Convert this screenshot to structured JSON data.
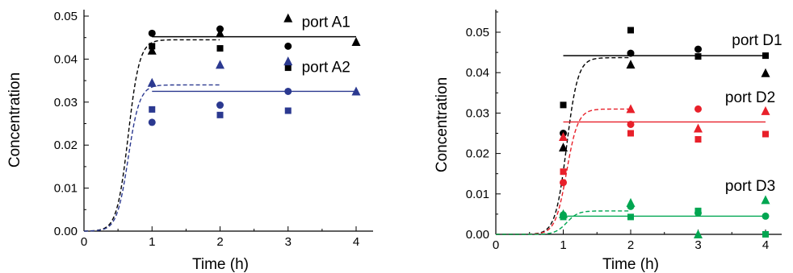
{
  "colors": {
    "black": "#000000",
    "blue": "#2B3990",
    "red": "#E8202A",
    "green": "#00A651"
  },
  "chart_data": [
    {
      "type": "scatter",
      "xlabel": "Time (h)",
      "ylabel": "Concentration",
      "xlim": [
        0,
        4.5
      ],
      "ylim": [
        0,
        0.05
      ],
      "xticks": [
        "0",
        "1",
        "2",
        "3",
        "4"
      ],
      "yticks": [
        "0.00",
        "0.01",
        "0.02",
        "0.03",
        "0.04",
        "0.05"
      ],
      "xtick_values": [
        0,
        1,
        2,
        3,
        4
      ],
      "ytick_values": [
        0,
        0.01,
        0.02,
        0.03,
        0.04,
        0.05
      ],
      "grid": false,
      "annotations": [
        {
          "text": "port A1",
          "x": 3.2,
          "y": 0.0475
        },
        {
          "text": "port A2",
          "x": 3.2,
          "y": 0.037
        }
      ],
      "series": [
        {
          "color": "#000000",
          "marker": "circle",
          "x": [
            1,
            2,
            3
          ],
          "y": [
            0.046,
            0.047,
            0.043
          ]
        },
        {
          "color": "#000000",
          "marker": "square",
          "x": [
            1,
            2,
            3
          ],
          "y": [
            0.043,
            0.0425,
            0.038
          ]
        },
        {
          "color": "#000000",
          "marker": "triangle",
          "x": [
            1,
            2,
            3,
            4
          ],
          "y": [
            0.042,
            0.046,
            0.0495,
            0.044
          ]
        },
        {
          "color": "#2B3990",
          "marker": "circle",
          "x": [
            1,
            2,
            3
          ],
          "y": [
            0.0253,
            0.0293,
            0.0325
          ]
        },
        {
          "color": "#2B3990",
          "marker": "square",
          "x": [
            1,
            2,
            3
          ],
          "y": [
            0.0283,
            0.027,
            0.028
          ]
        },
        {
          "color": "#2B3990",
          "marker": "triangle",
          "x": [
            1,
            2,
            3,
            4
          ],
          "y": [
            0.0345,
            0.0387,
            0.0395,
            0.0325
          ]
        }
      ],
      "fit_lines": [
        {
          "color": "#000000",
          "style": "solid",
          "x": [
            1,
            4
          ],
          "y": [
            0.0452,
            0.0452
          ]
        },
        {
          "color": "#2B3990",
          "style": "solid",
          "x": [
            1,
            4
          ],
          "y": [
            0.0325,
            0.0325
          ]
        }
      ],
      "model_curves": [
        {
          "color": "#000000",
          "style": "dashed",
          "x0": 0.3,
          "k": 12,
          "plateau": 0.0445,
          "xmax": 2
        },
        {
          "color": "#2B3990",
          "style": "dashed",
          "x0": 0.3,
          "k": 12,
          "plateau": 0.034,
          "xmax": 2
        }
      ]
    },
    {
      "type": "scatter",
      "xlabel": "Time (h)",
      "ylabel": "Concentration",
      "xlim": [
        0,
        4.5
      ],
      "ylim": [
        0,
        0.055
      ],
      "xticks": [
        "0",
        "1",
        "2",
        "3",
        "4"
      ],
      "yticks": [
        "0.00",
        "0.01",
        "0.02",
        "0.03",
        "0.04",
        "0.05"
      ],
      "xtick_values": [
        0,
        1,
        2,
        3,
        4
      ],
      "ytick_values": [
        0,
        0.01,
        0.02,
        0.03,
        0.04,
        0.05
      ],
      "grid": false,
      "annotations": [
        {
          "text": "port D1",
          "x": 3.5,
          "y": 0.0468
        },
        {
          "text": "port D2",
          "x": 3.4,
          "y": 0.0327
        },
        {
          "text": "port D3",
          "x": 3.4,
          "y": 0.0108
        }
      ],
      "series": [
        {
          "color": "#000000",
          "marker": "circle",
          "x": [
            1,
            2,
            3
          ],
          "y": [
            0.025,
            0.0448,
            0.0458
          ]
        },
        {
          "color": "#000000",
          "marker": "square",
          "x": [
            1,
            2,
            3,
            4
          ],
          "y": [
            0.032,
            0.0505,
            0.044,
            0.0442
          ]
        },
        {
          "color": "#000000",
          "marker": "triangle",
          "x": [
            1,
            2,
            4
          ],
          "y": [
            0.0215,
            0.042,
            0.0399
          ]
        },
        {
          "color": "#E8202A",
          "marker": "circle",
          "x": [
            1,
            2,
            3
          ],
          "y": [
            0.0128,
            0.0272,
            0.031
          ]
        },
        {
          "color": "#E8202A",
          "marker": "square",
          "x": [
            1,
            2,
            3,
            4
          ],
          "y": [
            0.0155,
            0.025,
            0.0235,
            0.0248
          ]
        },
        {
          "color": "#E8202A",
          "marker": "triangle",
          "x": [
            1,
            2,
            3,
            4
          ],
          "y": [
            0.0241,
            0.031,
            0.0262,
            0.0305
          ]
        },
        {
          "color": "#00A651",
          "marker": "circle",
          "x": [
            1,
            2,
            3,
            4
          ],
          "y": [
            0.0048,
            0.0069,
            0.0053,
            0.0045
          ]
        },
        {
          "color": "#00A651",
          "marker": "square",
          "x": [
            1,
            2,
            3,
            4
          ],
          "y": [
            0.0043,
            0.0043,
            0.0058,
            0.0
          ]
        },
        {
          "color": "#00A651",
          "marker": "triangle",
          "x": [
            1,
            2,
            3,
            4
          ],
          "y": [
            0.005,
            0.0078,
            0.0,
            0.0085
          ]
        }
      ],
      "fit_lines": [
        {
          "color": "#000000",
          "style": "solid",
          "x": [
            1,
            4
          ],
          "y": [
            0.0442,
            0.0442
          ]
        },
        {
          "color": "#E8202A",
          "style": "solid",
          "x": [
            1,
            4
          ],
          "y": [
            0.0278,
            0.0278
          ]
        },
        {
          "color": "#00A651",
          "style": "solid",
          "x": [
            1,
            4
          ],
          "y": [
            0.0045,
            0.0045
          ]
        }
      ],
      "model_curves": [
        {
          "color": "#000000",
          "style": "dashed",
          "x0": 0.7,
          "k": 12,
          "plateau": 0.0437,
          "xmax": 2
        },
        {
          "color": "#E8202A",
          "style": "dashed",
          "x0": 0.7,
          "k": 12,
          "plateau": 0.031,
          "xmax": 2
        },
        {
          "color": "#00A651",
          "style": "dashed",
          "x0": 0.7,
          "k": 12,
          "plateau": 0.0058,
          "xmax": 2
        }
      ]
    }
  ]
}
